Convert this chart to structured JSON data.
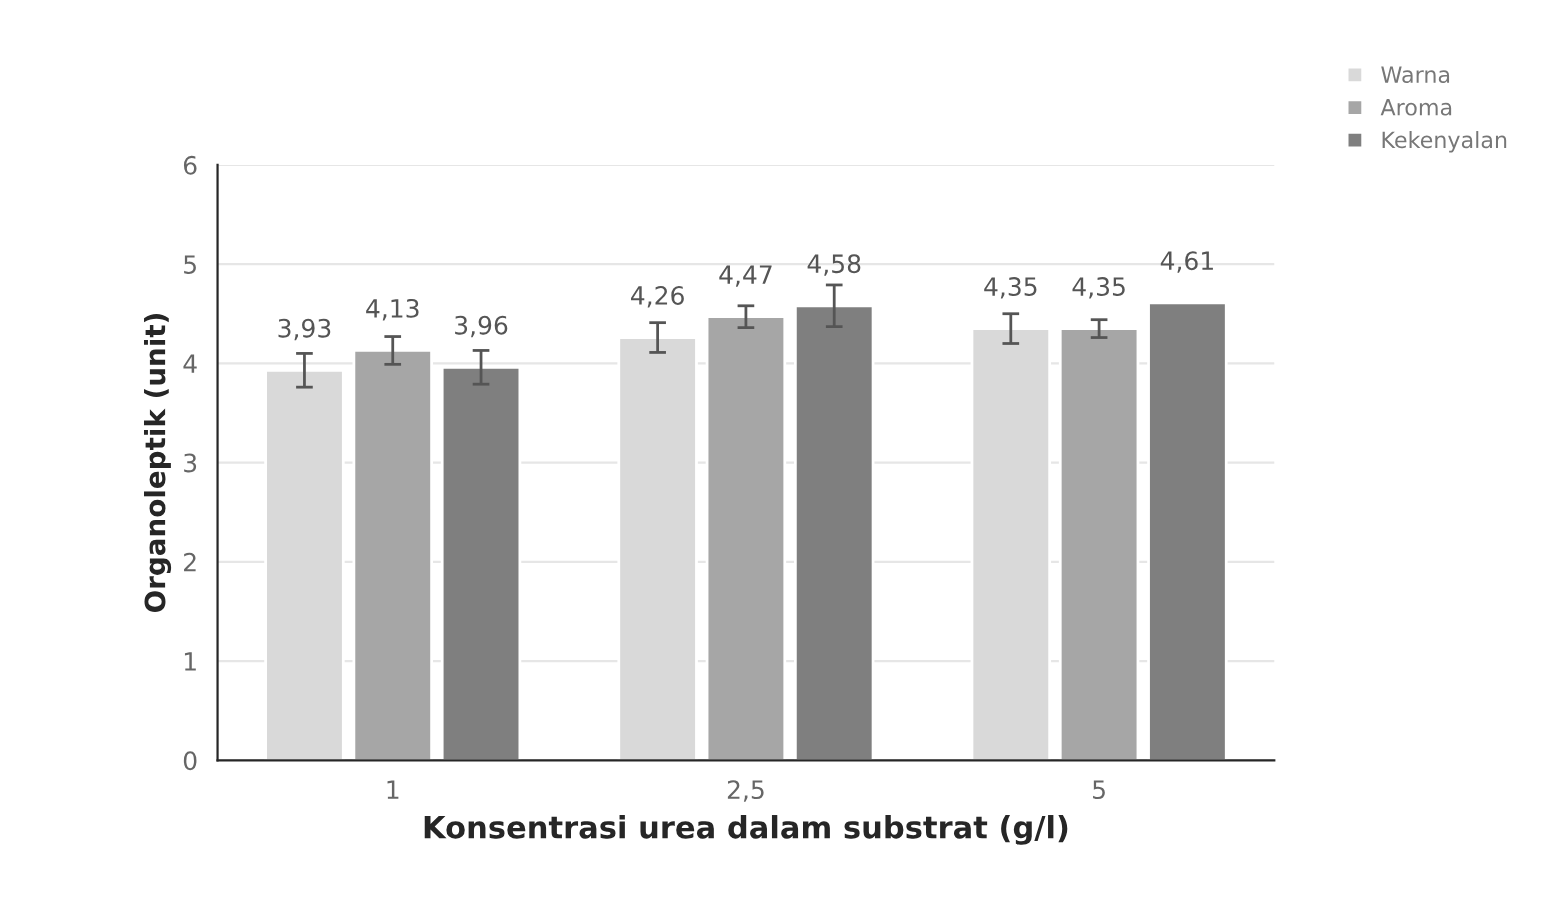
{
  "chart_data": {
    "type": "bar",
    "xlabel": "Konsentrasi urea dalam substrat (g/l)",
    "ylabel": "Organoleptik (unit)",
    "categories": [
      "1",
      "2,5",
      "5"
    ],
    "series": [
      {
        "name": "Warna",
        "color": "#d9d9d9",
        "values": [
          3.93,
          4.26,
          4.35
        ],
        "errors": [
          0.17,
          0.15,
          0.15
        ],
        "value_labels": [
          "3,93",
          "4,26",
          "4,35"
        ]
      },
      {
        "name": "Aroma",
        "color": "#a6a6a6",
        "values": [
          4.13,
          4.47,
          4.35
        ],
        "errors": [
          0.14,
          0.11,
          0.09
        ],
        "value_labels": [
          "4,13",
          "4,47",
          "4,35"
        ]
      },
      {
        "name": "Kekenyalan",
        "color": "#7f7f7f",
        "values": [
          3.96,
          4.58,
          4.61
        ],
        "errors": [
          0.17,
          0.21,
          null
        ],
        "value_labels": [
          "3,96",
          "4,58",
          "4,61"
        ]
      }
    ],
    "ylim": [
      0,
      6
    ],
    "yticks": [
      0,
      1,
      2,
      3,
      4,
      5,
      6
    ],
    "grid": "y",
    "legend": "top right"
  }
}
